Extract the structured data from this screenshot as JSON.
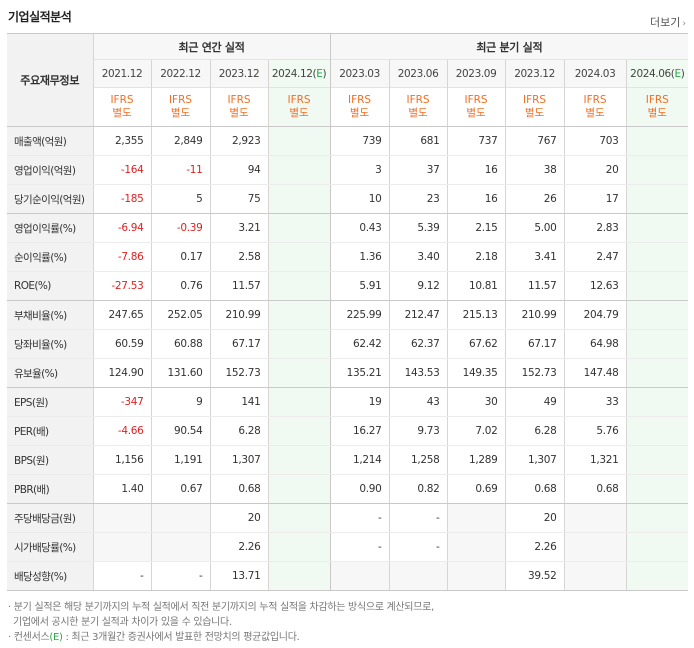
{
  "section_title": "기업실적분석",
  "more_label": "더보기",
  "header": {
    "row_label": "주요재무정보",
    "annual_group": "최근 연간 실적",
    "quarter_group": "최근 분기 실적",
    "annual_periods": [
      "2021.12",
      "2022.12",
      "2023.12",
      "2024.12(E)"
    ],
    "quarter_periods": [
      "2023.03",
      "2023.06",
      "2023.09",
      "2023.12",
      "2024.03",
      "2024.06(E)"
    ],
    "ifrs_top": "IFRS",
    "ifrs_bottom": "별도"
  },
  "rows": [
    {
      "label": "매출액(억원)",
      "values": [
        "2,355",
        "2,849",
        "2,923",
        "",
        "739",
        "681",
        "737",
        "767",
        "703",
        ""
      ]
    },
    {
      "label": "영업이익(억원)",
      "values": [
        "-164",
        "-11",
        "94",
        "",
        "3",
        "37",
        "16",
        "38",
        "20",
        ""
      ]
    },
    {
      "label": "당기순이익(억원)",
      "values": [
        "-185",
        "5",
        "75",
        "",
        "10",
        "23",
        "16",
        "26",
        "17",
        ""
      ]
    },
    {
      "label": "영업이익률(%)",
      "values": [
        "-6.94",
        "-0.39",
        "3.21",
        "",
        "0.43",
        "5.39",
        "2.15",
        "5.00",
        "2.83",
        ""
      ]
    },
    {
      "label": "순이익률(%)",
      "values": [
        "-7.86",
        "0.17",
        "2.58",
        "",
        "1.36",
        "3.40",
        "2.18",
        "3.41",
        "2.47",
        ""
      ]
    },
    {
      "label": "ROE(%)",
      "values": [
        "-27.53",
        "0.76",
        "11.57",
        "",
        "5.91",
        "9.12",
        "10.81",
        "11.57",
        "12.63",
        ""
      ]
    },
    {
      "label": "부채비율(%)",
      "values": [
        "247.65",
        "252.05",
        "210.99",
        "",
        "225.99",
        "212.47",
        "215.13",
        "210.99",
        "204.79",
        ""
      ]
    },
    {
      "label": "당좌비율(%)",
      "values": [
        "60.59",
        "60.88",
        "67.17",
        "",
        "62.42",
        "62.37",
        "67.62",
        "67.17",
        "64.98",
        ""
      ]
    },
    {
      "label": "유보율(%)",
      "values": [
        "124.90",
        "131.60",
        "152.73",
        "",
        "135.21",
        "143.53",
        "149.35",
        "152.73",
        "147.48",
        ""
      ]
    },
    {
      "label": "EPS(원)",
      "values": [
        "-347",
        "9",
        "141",
        "",
        "19",
        "43",
        "30",
        "49",
        "33",
        ""
      ]
    },
    {
      "label": "PER(배)",
      "values": [
        "-4.66",
        "90.54",
        "6.28",
        "",
        "16.27",
        "9.73",
        "7.02",
        "6.28",
        "5.76",
        ""
      ]
    },
    {
      "label": "BPS(원)",
      "values": [
        "1,156",
        "1,191",
        "1,307",
        "",
        "1,214",
        "1,258",
        "1,289",
        "1,307",
        "1,321",
        ""
      ]
    },
    {
      "label": "PBR(배)",
      "values": [
        "1.40",
        "0.67",
        "0.68",
        "",
        "0.90",
        "0.82",
        "0.69",
        "0.68",
        "0.68",
        ""
      ]
    },
    {
      "label": "주당배당금(원)",
      "values": [
        "",
        "",
        "20",
        "",
        "-",
        "-",
        "",
        "20",
        "",
        ""
      ]
    },
    {
      "label": "시가배당률(%)",
      "values": [
        "",
        "",
        "2.26",
        "",
        "-",
        "-",
        "",
        "2.26",
        "",
        ""
      ]
    },
    {
      "label": "배당성향(%)",
      "values": [
        "-",
        "-",
        "13.71",
        "",
        "",
        "",
        "",
        "39.52",
        "",
        ""
      ]
    }
  ],
  "notes": [
    "분기 실적은 해당 분기까지의 누적 실적에서 직전 분기까지의 누적 실적을 차감하는 방식으로 계산되므로,",
    "기업에서 공시한 분기 실적과 차이가 있을 수 있습니다.",
    "컨센서스(E) : 최근 3개월간 증권사에서 발표한 전망치의 평균값입니다."
  ],
  "colors": {
    "negative": "#e02020",
    "ifrs": "#f26d21",
    "estimate_bg": "#f1faf2",
    "estimate_mark": "#28a745"
  }
}
